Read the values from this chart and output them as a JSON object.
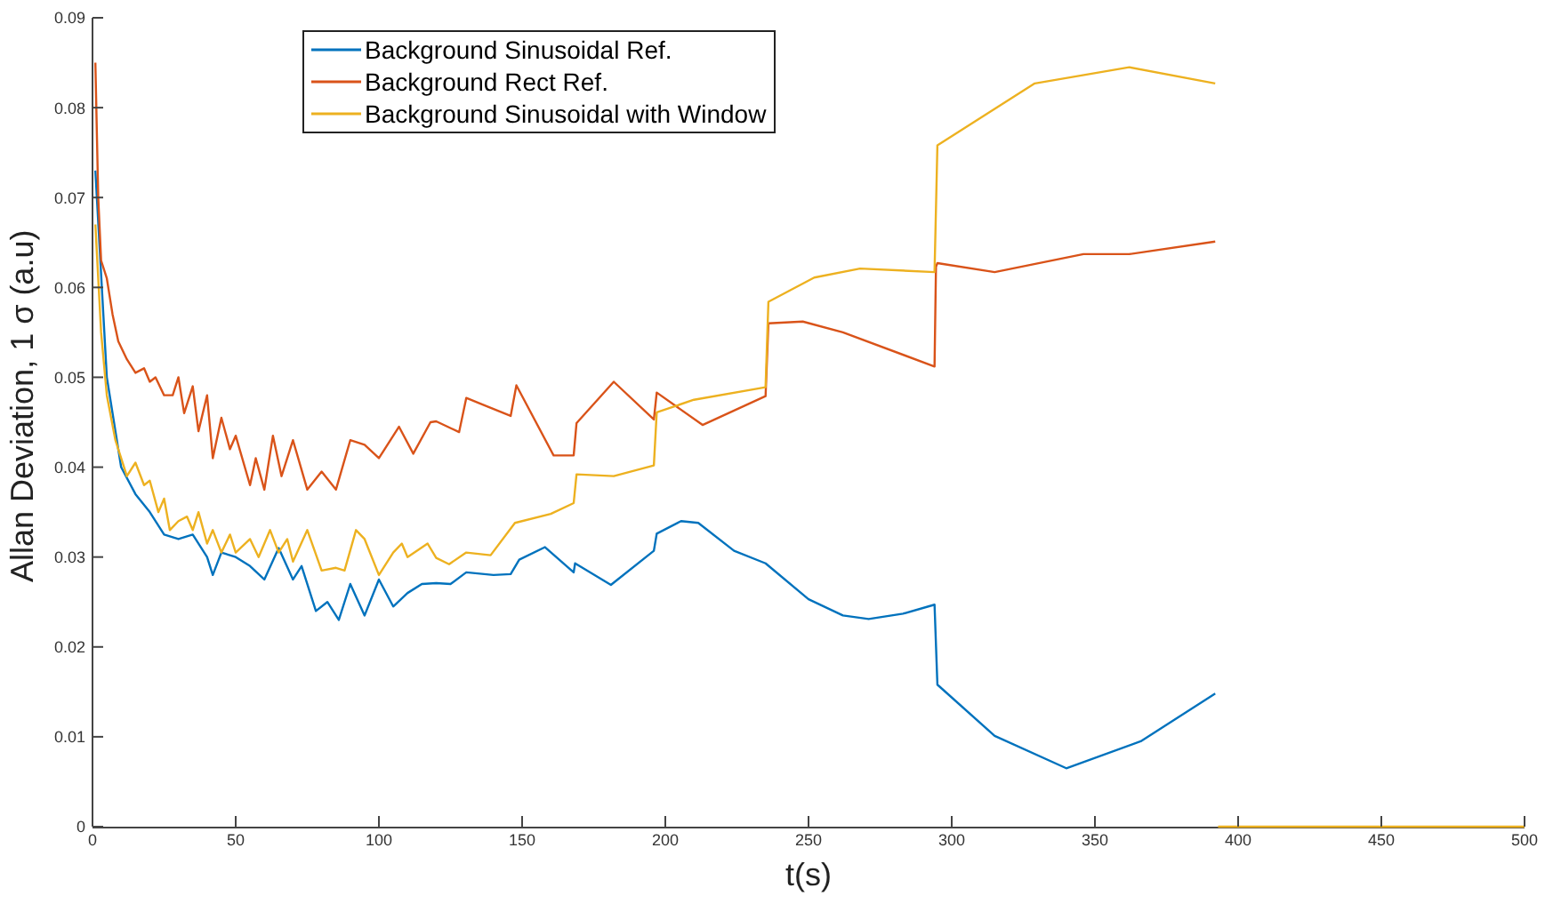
{
  "chart_data": {
    "type": "line",
    "xlabel": "t(s)",
    "ylabel": "Allan Deviation, 1 σ (a.u)",
    "xlim": [
      0,
      500
    ],
    "xticks": [
      0,
      50,
      100,
      150,
      200,
      250,
      300,
      350,
      400,
      450,
      500
    ],
    "ylim": [
      0,
      0.09
    ],
    "yticks": [
      0,
      0.01,
      0.02,
      0.03,
      0.04,
      0.05,
      0.06,
      0.07,
      0.08,
      0.09
    ],
    "grid": false,
    "legend": "top left",
    "marker": "none",
    "line_style": "solid",
    "series": [
      {
        "name": "Background Sinusoidal Ref.",
        "color": "#0072bd",
        "x": [
          1,
          5,
          10,
          15,
          20,
          25,
          30,
          35,
          40,
          42,
          45,
          50,
          55,
          60,
          65,
          70,
          73,
          78,
          82,
          86,
          90,
          95,
          100,
          105,
          110,
          115,
          120,
          125,
          130.5,
          140,
          146,
          149,
          158,
          168,
          168.5,
          181,
          196,
          197,
          205.5,
          211.5,
          224,
          235,
          250,
          262,
          271,
          283,
          294,
          295,
          315,
          340,
          366,
          392
        ],
        "values": [
          0.073,
          0.05,
          0.04,
          0.037,
          0.035,
          0.0325,
          0.032,
          0.0325,
          0.03,
          0.028,
          0.0305,
          0.03,
          0.029,
          0.0275,
          0.031,
          0.0275,
          0.029,
          0.024,
          0.025,
          0.023,
          0.027,
          0.0235,
          0.0275,
          0.0245,
          0.026,
          0.027,
          0.0271,
          0.027,
          0.0283,
          0.028,
          0.0281,
          0.0297,
          0.0311,
          0.0283,
          0.0293,
          0.0269,
          0.0307,
          0.0326,
          0.034,
          0.0338,
          0.0307,
          0.0293,
          0.0253,
          0.0235,
          0.0231,
          0.0237,
          0.0247,
          0.0158,
          0.0101,
          0.0065,
          0.0095,
          0.0148
        ]
      },
      {
        "name": "Background Rect Ref.",
        "color": "#d95319",
        "x": [
          1,
          2,
          3,
          5,
          7,
          9,
          12,
          15,
          18,
          20,
          22,
          25,
          28,
          30,
          32,
          35,
          37,
          40,
          42,
          45,
          48,
          50,
          55,
          57,
          60,
          63,
          66,
          70,
          75,
          80,
          85,
          90,
          95,
          100,
          107,
          112,
          118,
          120,
          128,
          130.5,
          136,
          146,
          148,
          161,
          168,
          169,
          182,
          196,
          197,
          213,
          235,
          236,
          248,
          262,
          294,
          294.5,
          295,
          315,
          346,
          362,
          392
        ],
        "values": [
          0.085,
          0.07,
          0.063,
          0.061,
          0.057,
          0.054,
          0.052,
          0.0505,
          0.051,
          0.0495,
          0.05,
          0.048,
          0.048,
          0.05,
          0.046,
          0.049,
          0.044,
          0.048,
          0.041,
          0.0455,
          0.042,
          0.0435,
          0.038,
          0.041,
          0.0375,
          0.0435,
          0.039,
          0.043,
          0.0375,
          0.0395,
          0.0375,
          0.043,
          0.0425,
          0.041,
          0.0445,
          0.0415,
          0.045,
          0.0451,
          0.0439,
          0.0477,
          0.047,
          0.0457,
          0.0491,
          0.0413,
          0.0413,
          0.0449,
          0.0495,
          0.0453,
          0.0483,
          0.0447,
          0.0479,
          0.056,
          0.0562,
          0.055,
          0.0512,
          0.0623,
          0.0627,
          0.0617,
          0.0637,
          0.0637,
          0.0651
        ]
      },
      {
        "name": "Background Sinusoidal with Window",
        "color": "#edb120",
        "x": [
          1,
          3,
          5,
          8,
          10,
          12,
          15,
          18,
          20,
          23,
          25,
          27,
          30,
          33,
          35,
          37,
          40,
          42,
          45,
          48,
          50,
          55,
          58,
          62,
          65,
          68,
          70,
          75,
          80,
          85,
          88,
          92,
          95,
          100,
          105,
          108,
          110,
          117,
          120,
          124.5,
          130.5,
          139,
          147.5,
          160,
          168,
          169,
          182,
          196,
          197,
          210,
          235,
          236,
          252,
          268,
          294,
          295,
          329,
          362,
          392,
          392.5,
          393,
          500
        ],
        "values": [
          0.067,
          0.055,
          0.048,
          0.043,
          0.041,
          0.039,
          0.0405,
          0.038,
          0.0385,
          0.035,
          0.0365,
          0.033,
          0.034,
          0.0345,
          0.033,
          0.035,
          0.0315,
          0.033,
          0.0305,
          0.0325,
          0.0305,
          0.032,
          0.03,
          0.033,
          0.0305,
          0.032,
          0.0295,
          0.033,
          0.0285,
          0.0288,
          0.0285,
          0.033,
          0.032,
          0.028,
          0.0305,
          0.0315,
          0.03,
          0.0315,
          0.0299,
          0.0292,
          0.0305,
          0.0302,
          0.0338,
          0.0348,
          0.036,
          0.0392,
          0.039,
          0.0402,
          0.0461,
          0.0475,
          0.0489,
          0.0584,
          0.0611,
          0.0621,
          0.0617,
          0.0758,
          0.0827,
          0.0845,
          0.0827,
          null,
          0,
          0
        ]
      }
    ]
  }
}
